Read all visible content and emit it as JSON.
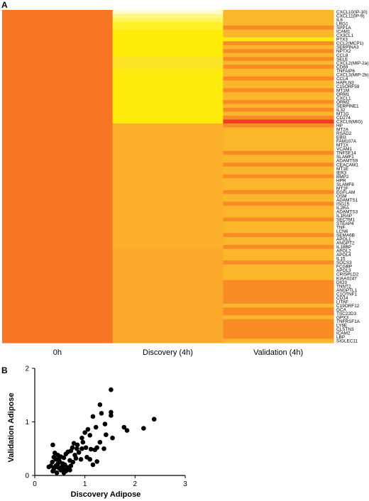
{
  "panels": {
    "a": "A",
    "b": "B"
  },
  "chart_data": [
    {
      "type": "heatmap",
      "panel": "A",
      "columns": [
        "0h",
        "Discovery (4h)",
        "Validation (4h)"
      ],
      "rows": [
        "CXCL10(IP-10)",
        "CXCL11(IP-9)",
        "IL6",
        "LRG1",
        "SPP1A",
        "ICAM1",
        "CX3CL1",
        "PTX3",
        "CCL2(MCP1)",
        "SERPINA3",
        "NPTX2",
        "CCL8",
        "SELE",
        "CXCL2(MIP-2a)",
        "CD69",
        "TNFAIP6",
        "CXCL3(MIP-2b)",
        "CCL4",
        "HAPLN3",
        "C15ORF59",
        "MT1M",
        "ORM1",
        "CXCL1",
        "ORM2",
        "SERPINE1",
        "IL32",
        "MT1G",
        "CD274",
        "CXCL9(MIG)",
        "HP",
        "MT2A",
        "RSAD2",
        "EBI3",
        "FAM107A",
        "MT1X",
        "VCAM1",
        "TNFSF14",
        "SLAMF1",
        "ADAMTS9",
        "CEACAM1",
        "MT1E",
        "IER3",
        "BMP2",
        "HPR",
        "SLAMF8",
        "MT1F",
        "EGFLAM",
        "OSM",
        "ADAMTS1",
        "ISG15",
        "IL2RA",
        "ADAMTS3",
        "IL1RAP",
        "SECTM1",
        "STEAP4",
        "TNF",
        "LCN6",
        "SEMA6B",
        "APOL1",
        "ANGPT2",
        "IL18BP",
        "APOL2",
        "APOL4",
        "IL15",
        "SOCS3",
        "FCGBP",
        "APOL3",
        "CRISPLD2",
        "KIAA0247",
        "DIO3",
        "TNNT2",
        "ANGPTL1",
        "C1QTNF1",
        "CD14",
        "LITAF",
        "C19ORF12",
        "GCA",
        "TSC22D3",
        "GPX3",
        "TNFRSF1A",
        "LY6E",
        "CLSTN3",
        "ICAM2",
        "LBP",
        "SIGLEC11"
      ],
      "values": [
        [
          0.0,
          1.0,
          0.4
        ],
        [
          0.0,
          0.95,
          0.4
        ],
        [
          0.0,
          0.92,
          0.4
        ],
        [
          0.0,
          0.88,
          0.4
        ],
        [
          0.0,
          0.88,
          0.1
        ],
        [
          0.0,
          0.82,
          0.4
        ],
        [
          0.0,
          0.82,
          0.4
        ],
        [
          0.0,
          0.82,
          0.8
        ],
        [
          0.0,
          0.82,
          0.1
        ],
        [
          0.0,
          0.82,
          0.4
        ],
        [
          0.0,
          0.82,
          0.1
        ],
        [
          0.0,
          0.82,
          0.4
        ],
        [
          0.0,
          0.7,
          0.1
        ],
        [
          0.0,
          0.7,
          0.4
        ],
        [
          0.0,
          0.7,
          0.1
        ],
        [
          0.0,
          0.8,
          0.4
        ],
        [
          0.0,
          0.8,
          0.4
        ],
        [
          0.0,
          0.8,
          0.1
        ],
        [
          0.0,
          0.8,
          0.4
        ],
        [
          0.0,
          0.8,
          0.4
        ],
        [
          0.0,
          0.8,
          0.1
        ],
        [
          0.0,
          0.8,
          0.4
        ],
        [
          0.0,
          0.8,
          0.4
        ],
        [
          0.0,
          0.8,
          0.1
        ],
        [
          0.0,
          0.8,
          0.4
        ],
        [
          0.0,
          0.8,
          0.1
        ],
        [
          0.0,
          0.8,
          0.4
        ],
        [
          0.0,
          0.8,
          0.1
        ],
        [
          0.0,
          0.8,
          -0.3
        ],
        [
          0.0,
          0.35,
          0.1
        ],
        [
          0.0,
          0.35,
          0.4
        ],
        [
          0.0,
          0.35,
          0.4
        ],
        [
          0.0,
          0.35,
          0.4
        ],
        [
          0.0,
          0.35,
          0.4
        ],
        [
          0.0,
          0.35,
          0.4
        ],
        [
          0.0,
          0.35,
          0.4
        ],
        [
          0.0,
          0.35,
          0.1
        ],
        [
          0.0,
          0.35,
          0.4
        ],
        [
          0.0,
          0.35,
          0.4
        ],
        [
          0.0,
          0.35,
          0.1
        ],
        [
          0.0,
          0.35,
          0.4
        ],
        [
          0.0,
          0.35,
          0.4
        ],
        [
          0.0,
          0.35,
          0.1
        ],
        [
          0.0,
          0.35,
          0.4
        ],
        [
          0.0,
          0.35,
          0.4
        ],
        [
          0.0,
          0.35,
          0.4
        ],
        [
          0.0,
          0.35,
          0.1
        ],
        [
          0.0,
          0.35,
          0.4
        ],
        [
          0.0,
          0.35,
          0.4
        ],
        [
          0.0,
          0.35,
          0.1
        ],
        [
          0.0,
          0.35,
          0.4
        ],
        [
          0.0,
          0.35,
          0.4
        ],
        [
          0.0,
          0.35,
          0.4
        ],
        [
          0.0,
          0.35,
          0.1
        ],
        [
          0.0,
          0.35,
          0.4
        ],
        [
          0.0,
          0.35,
          0.4
        ],
        [
          0.0,
          0.35,
          0.4
        ],
        [
          0.0,
          0.35,
          0.1
        ],
        [
          0.0,
          0.35,
          0.4
        ],
        [
          0.0,
          0.35,
          0.4
        ],
        [
          0.0,
          0.35,
          0.1
        ],
        [
          0.0,
          0.3,
          0.4
        ],
        [
          0.0,
          0.3,
          0.4
        ],
        [
          0.0,
          0.3,
          0.4
        ],
        [
          0.0,
          0.3,
          0.1
        ],
        [
          0.0,
          0.3,
          0.4
        ],
        [
          0.0,
          0.3,
          0.4
        ],
        [
          0.0,
          0.3,
          0.4
        ],
        [
          0.0,
          0.3,
          0.4
        ],
        [
          0.0,
          0.3,
          0.1
        ],
        [
          0.0,
          0.3,
          0.1
        ],
        [
          0.0,
          0.3,
          0.1
        ],
        [
          0.0,
          0.3,
          0.1
        ],
        [
          0.0,
          0.3,
          0.1
        ],
        [
          0.0,
          0.3,
          0.1
        ],
        [
          0.0,
          0.3,
          0.4
        ],
        [
          0.0,
          0.3,
          0.1
        ],
        [
          0.0,
          0.3,
          0.1
        ],
        [
          0.0,
          0.3,
          0.4
        ],
        [
          0.0,
          0.3,
          0.1
        ],
        [
          0.0,
          0.3,
          0.1
        ],
        [
          0.0,
          0.3,
          0.1
        ],
        [
          0.0,
          0.3,
          0.1
        ],
        [
          0.0,
          0.3,
          0.1
        ],
        [
          0.0,
          0.3,
          0.4
        ]
      ]
    },
    {
      "type": "scatter",
      "panel": "B",
      "xlabel": "Discovery Adipose",
      "ylabel": "Validation Adipose",
      "xlim": [
        0,
        3
      ],
      "ylim": [
        0,
        2
      ],
      "xticks": [
        "0",
        "1",
        "2",
        "3"
      ],
      "yticks": [
        "0",
        "1",
        "2"
      ],
      "points": [
        [
          1.52,
          1.6
        ],
        [
          1.3,
          1.32
        ],
        [
          1.33,
          1.16
        ],
        [
          1.52,
          1.18
        ],
        [
          1.52,
          1.12
        ],
        [
          1.16,
          1.1
        ],
        [
          1.4,
          0.96
        ],
        [
          1.84,
          0.84
        ],
        [
          1.78,
          0.9
        ],
        [
          2.17,
          0.88
        ],
        [
          2.38,
          1.05
        ],
        [
          1.55,
          0.7
        ],
        [
          1.42,
          0.76
        ],
        [
          1.22,
          0.9
        ],
        [
          1.06,
          0.86
        ],
        [
          1.0,
          0.8
        ],
        [
          1.1,
          0.75
        ],
        [
          0.94,
          0.7
        ],
        [
          0.96,
          0.62
        ],
        [
          0.85,
          0.57
        ],
        [
          0.78,
          0.6
        ],
        [
          0.75,
          0.52
        ],
        [
          0.84,
          0.5
        ],
        [
          0.94,
          0.5
        ],
        [
          1.02,
          0.52
        ],
        [
          1.12,
          0.49
        ],
        [
          1.24,
          0.52
        ],
        [
          1.2,
          0.48
        ],
        [
          1.04,
          0.34
        ],
        [
          0.88,
          0.43
        ],
        [
          0.8,
          0.38
        ],
        [
          0.72,
          0.46
        ],
        [
          0.66,
          0.44
        ],
        [
          0.62,
          0.4
        ],
        [
          0.58,
          0.33
        ],
        [
          0.52,
          0.35
        ],
        [
          0.46,
          0.38
        ],
        [
          0.4,
          0.42
        ],
        [
          0.36,
          0.57
        ],
        [
          0.42,
          0.3
        ],
        [
          0.5,
          0.25
        ],
        [
          0.56,
          0.22
        ],
        [
          0.6,
          0.2
        ],
        [
          0.7,
          0.28
        ],
        [
          0.76,
          0.25
        ],
        [
          0.82,
          0.32
        ],
        [
          0.92,
          0.3
        ],
        [
          1.1,
          0.3
        ],
        [
          1.16,
          0.2
        ],
        [
          1.24,
          0.26
        ],
        [
          1.38,
          0.5
        ],
        [
          1.3,
          0.62
        ],
        [
          0.42,
          0.18
        ],
        [
          0.46,
          0.22
        ],
        [
          0.48,
          0.14
        ],
        [
          0.52,
          0.1
        ],
        [
          0.54,
          0.16
        ],
        [
          0.58,
          0.12
        ],
        [
          0.62,
          0.08
        ],
        [
          0.66,
          0.15
        ],
        [
          0.7,
          0.1
        ],
        [
          0.36,
          0.08
        ],
        [
          0.38,
          0.12
        ],
        [
          0.4,
          0.15
        ],
        [
          0.32,
          0.18
        ],
        [
          0.28,
          0.16
        ],
        [
          0.44,
          0.05
        ],
        [
          0.58,
          0.05
        ],
        [
          0.72,
          0.18
        ],
        [
          0.35,
          0.25
        ],
        [
          0.38,
          0.34
        ],
        [
          0.48,
          0.3
        ]
      ]
    }
  ]
}
